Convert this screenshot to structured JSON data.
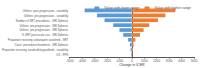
{
  "chart_data": {
    "type": "bar",
    "orientation": "horizontal",
    "categories": [
      "Utilities: post-progression - variability",
      "Utilities: pre-progression - variability",
      "Number of SRT procedures - SIR-Spheres",
      "Utilities: pre-progression - SIR-Spheres",
      "Utilities: pre-progression - SIR-Spheres",
      "% SRT post-acute use - SIR-Spheres",
      "Proportion receiving subsequent sorafenib - SRT",
      "Costs: procedures/treatment - SIR-Spheres",
      "Proportion receiving sorafenib/regorafenib - variability",
      "OS - PPS"
    ],
    "series": [
      {
        "name": "Value with lower range",
        "color": "#5b9bd5",
        "values": [
          -3800,
          -2800,
          -2200,
          -1500,
          -1000,
          -700,
          -300,
          -150,
          -100,
          -50
        ]
      },
      {
        "name": "Value with higher range",
        "color": "#ed7d31",
        "values": [
          3500,
          2700,
          2100,
          1400,
          950,
          650,
          280,
          140,
          95,
          45
        ]
      }
    ],
    "xlabel": "Change in ICER",
    "xlim": [
      -5000,
      5000
    ],
    "xticks": [
      -5000,
      -4000,
      -3000,
      -2000,
      -1000,
      0,
      1000,
      2000,
      3000,
      4000,
      5000
    ],
    "legend": "upper right",
    "grid": false
  }
}
